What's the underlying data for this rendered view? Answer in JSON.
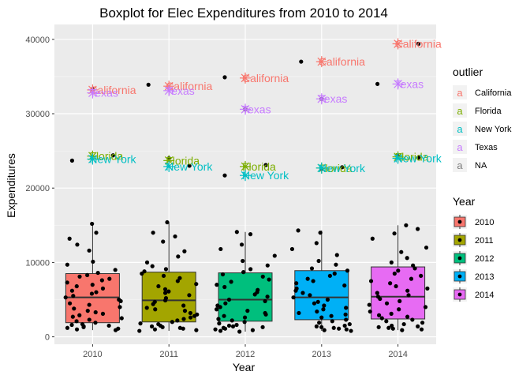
{
  "chart_data": {
    "type": "boxplot",
    "title": "Boxplot for Elec Expenditures from 2010 to 2014",
    "xlabel": "Year",
    "ylabel": "Expenditures",
    "categories": [
      "2010",
      "2011",
      "2012",
      "2013",
      "2014"
    ],
    "ylim": [
      -1000,
      42000
    ],
    "y_ticks": [
      0,
      10000,
      20000,
      30000,
      40000
    ],
    "y_tick_labels": [
      "0",
      "10000",
      "20000",
      "30000",
      "40000"
    ],
    "grid": true,
    "panel_background": "#ebebeb",
    "boxes": [
      {
        "year": "2010",
        "q1": 1900,
        "median": 5300,
        "q3": 8500,
        "whisker_low": 900,
        "whisker_high": 15200,
        "fill": "#F8766D"
      },
      {
        "year": "2011",
        "q1": 2000,
        "median": 4900,
        "q3": 8700,
        "whisker_low": 800,
        "whisker_high": 15400,
        "fill": "#A3A500"
      },
      {
        "year": "2012",
        "q1": 2100,
        "median": 5000,
        "q3": 8600,
        "whisker_low": 700,
        "whisker_high": 14100,
        "fill": "#00BF7D"
      },
      {
        "year": "2013",
        "q1": 2300,
        "median": 5300,
        "q3": 8900,
        "whisker_low": 800,
        "whisker_high": 14300,
        "fill": "#00B0F6"
      },
      {
        "year": "2014",
        "q1": 2400,
        "median": 5400,
        "q3": 9400,
        "whisker_low": 900,
        "whisker_high": 15000,
        "fill": "#E76BF3"
      }
    ],
    "outliers": [
      {
        "year": "2010",
        "value": 33200,
        "label": "California",
        "color": "#F8766D"
      },
      {
        "year": "2010",
        "value": 32800,
        "label": "Texas",
        "color": "#C77CFF"
      },
      {
        "year": "2010",
        "value": 24300,
        "label": "Florida",
        "color": "#7CAE00"
      },
      {
        "year": "2010",
        "value": 23900,
        "label": "New York",
        "color": "#00BFC4"
      },
      {
        "year": "2011",
        "value": 33700,
        "label": "California",
        "color": "#F8766D"
      },
      {
        "year": "2011",
        "value": 33100,
        "label": "Texas",
        "color": "#C77CFF"
      },
      {
        "year": "2011",
        "value": 23700,
        "label": "Florida",
        "color": "#7CAE00"
      },
      {
        "year": "2011",
        "value": 22900,
        "label": "New York",
        "color": "#00BFC4"
      },
      {
        "year": "2012",
        "value": 34800,
        "label": "California",
        "color": "#F8766D"
      },
      {
        "year": "2012",
        "value": 30600,
        "label": "Texas",
        "color": "#C77CFF"
      },
      {
        "year": "2012",
        "value": 22900,
        "label": "Florida",
        "color": "#7CAE00"
      },
      {
        "year": "2012",
        "value": 21700,
        "label": "New York",
        "color": "#00BFC4"
      },
      {
        "year": "2013",
        "value": 37000,
        "label": "California",
        "color": "#F8766D"
      },
      {
        "year": "2013",
        "value": 32000,
        "label": "Texas",
        "color": "#C77CFF"
      },
      {
        "year": "2013",
        "value": 22700,
        "label": "Florida",
        "color": "#7CAE00"
      },
      {
        "year": "2013",
        "value": 22700,
        "label": "New York",
        "color": "#00BFC4"
      },
      {
        "year": "2014",
        "value": 39400,
        "label": "California",
        "color": "#F8766D"
      },
      {
        "year": "2014",
        "value": 34000,
        "label": "Texas",
        "color": "#C77CFF"
      },
      {
        "year": "2014",
        "value": 24200,
        "label": "Florida",
        "color": "#7CAE00"
      },
      {
        "year": "2014",
        "value": 24000,
        "label": "New York",
        "color": "#00BFC4"
      }
    ],
    "extra_points": [
      {
        "year": "2010",
        "value": 23700
      },
      {
        "year": "2010",
        "value": 33300
      },
      {
        "year": "2010",
        "value": 24400
      },
      {
        "year": "2011",
        "value": 33900
      },
      {
        "year": "2011",
        "value": 24000
      },
      {
        "year": "2011",
        "value": 23000
      },
      {
        "year": "2012",
        "value": 34900
      },
      {
        "year": "2012",
        "value": 30600
      },
      {
        "year": "2012",
        "value": 23100
      },
      {
        "year": "2012",
        "value": 21700
      },
      {
        "year": "2013",
        "value": 32000
      },
      {
        "year": "2013",
        "value": 22800
      },
      {
        "year": "2013",
        "value": 37000
      },
      {
        "year": "2013",
        "value": 22600
      },
      {
        "year": "2014",
        "value": 39400
      },
      {
        "year": "2014",
        "value": 34000
      },
      {
        "year": "2014",
        "value": 24300
      },
      {
        "year": "2014",
        "value": 24100
      }
    ],
    "jitter_points": [
      {
        "year": "2010",
        "values": [
          15200,
          14000,
          13200,
          12400,
          11600,
          10100,
          9700,
          9000,
          8600,
          8300,
          8100,
          7800,
          7600,
          7300,
          7000,
          6800,
          6500,
          6200,
          6000,
          5800,
          5500,
          5300,
          5000,
          4800,
          4500,
          4300,
          4000,
          3800,
          3500,
          3300,
          3100,
          2900,
          2700,
          2500,
          2300,
          2100,
          1900,
          1700,
          1600,
          1500,
          1400,
          1300,
          1200,
          1100,
          1000,
          900
        ]
      },
      {
        "year": "2011",
        "values": [
          15400,
          14000,
          13500,
          12800,
          11500,
          10800,
          10000,
          9500,
          9100,
          8800,
          8500,
          8200,
          7900,
          7500,
          7100,
          6800,
          6400,
          6100,
          5900,
          5600,
          5200,
          4900,
          4700,
          4400,
          4200,
          3900,
          3700,
          3500,
          3200,
          3000,
          2800,
          2600,
          2400,
          2200,
          2000,
          1800,
          1700,
          1500,
          1400,
          1300,
          1200,
          1100,
          1000,
          900,
          800
        ]
      },
      {
        "year": "2012",
        "values": [
          14100,
          13800,
          12400,
          11800,
          10900,
          10200,
          9600,
          9100,
          8700,
          8400,
          8100,
          7700,
          7400,
          7000,
          6700,
          6300,
          6000,
          5700,
          5400,
          5000,
          4800,
          4500,
          4200,
          4000,
          3700,
          3500,
          3200,
          3000,
          2800,
          2600,
          2400,
          2200,
          2000,
          1800,
          1600,
          1500,
          1400,
          1300,
          1200,
          1100,
          1000,
          900,
          800,
          700
        ]
      },
      {
        "year": "2013",
        "values": [
          14300,
          14000,
          12600,
          11800,
          11000,
          10200,
          9700,
          9200,
          8900,
          8500,
          8200,
          7800,
          7500,
          7200,
          6900,
          6500,
          6200,
          5900,
          5600,
          5300,
          5000,
          4700,
          4500,
          4200,
          3900,
          3700,
          3400,
          3200,
          3000,
          2800,
          2600,
          2300,
          2100,
          1900,
          1700,
          1500,
          1400,
          1300,
          1200,
          1100,
          1000,
          900,
          800
        ]
      },
      {
        "year": "2014",
        "values": [
          15000,
          14500,
          13900,
          13200,
          12000,
          11400,
          10600,
          10000,
          9600,
          9200,
          8900,
          8500,
          8200,
          7800,
          7500,
          7200,
          6800,
          6500,
          6200,
          5900,
          5600,
          5400,
          5100,
          4800,
          4500,
          4300,
          4000,
          3700,
          3400,
          3100,
          2900,
          2700,
          2500,
          2300,
          2100,
          1900,
          1700,
          1500,
          1400,
          1300,
          1200,
          1100,
          1000,
          900
        ]
      }
    ],
    "legends": [
      {
        "title": "outlier",
        "entries": [
          {
            "label": "California",
            "color": "#F8766D"
          },
          {
            "label": "Florida",
            "color": "#7CAE00"
          },
          {
            "label": "New York",
            "color": "#00BFC4"
          },
          {
            "label": "Texas",
            "color": "#C77CFF"
          },
          {
            "label": "NA",
            "color": "#7f7f7f"
          }
        ]
      },
      {
        "title": "Year",
        "entries": [
          {
            "label": "2010",
            "color": "#F8766D"
          },
          {
            "label": "2011",
            "color": "#A3A500"
          },
          {
            "label": "2012",
            "color": "#00BF7D"
          },
          {
            "label": "2013",
            "color": "#00B0F6"
          },
          {
            "label": "2014",
            "color": "#E76BF3"
          }
        ]
      }
    ],
    "legend_position": "right"
  }
}
